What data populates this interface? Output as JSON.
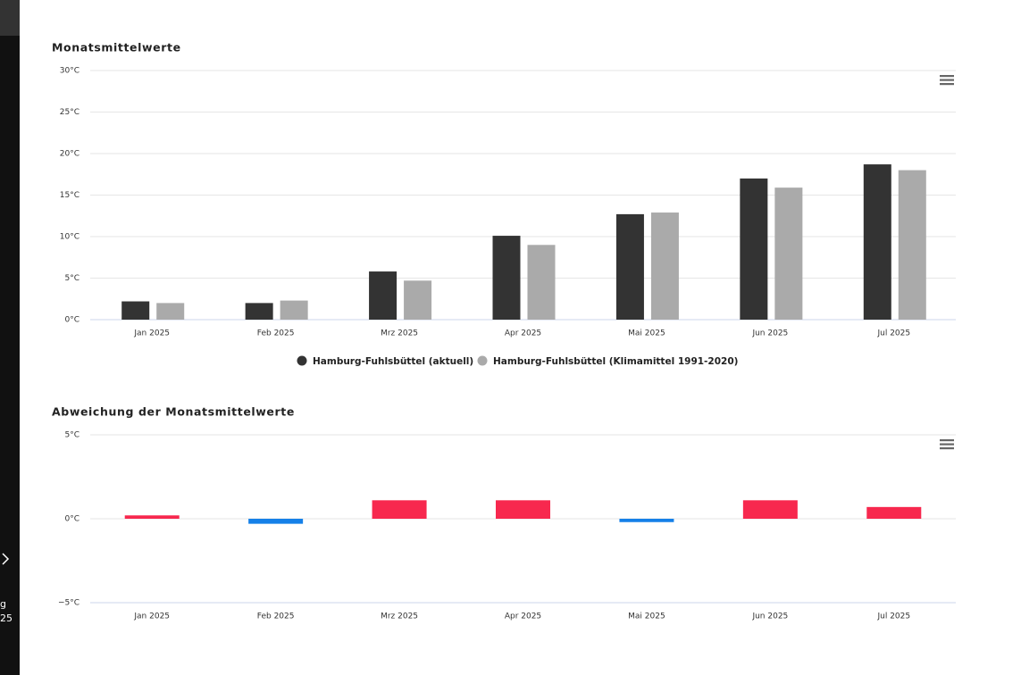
{
  "sidebar": {
    "texts": [
      "g",
      "25"
    ]
  },
  "chart_data": [
    {
      "type": "bar",
      "title": "Monatsmittelwerte",
      "categories": [
        "Jan 2025",
        "Feb 2025",
        "Mrz 2025",
        "Apr 2025",
        "Mai 2025",
        "Jun 2025",
        "Jul 2025"
      ],
      "series": [
        {
          "name": "Hamburg-Fuhlsbüttel (aktuell)",
          "color": "#333333",
          "values": [
            2.2,
            2.0,
            5.8,
            10.1,
            12.7,
            17.0,
            18.7
          ]
        },
        {
          "name": "Hamburg-Fuhlsbüttel (Klimamittel 1991-2020)",
          "color": "#aaaaaa",
          "values": [
            2.0,
            2.3,
            4.7,
            9.0,
            12.9,
            15.9,
            18.0
          ]
        }
      ],
      "ylim": [
        0,
        30
      ],
      "yticks": [
        {
          "value": 0,
          "label": "0°C"
        },
        {
          "value": 5,
          "label": "5°C"
        },
        {
          "value": 10,
          "label": "10°C"
        },
        {
          "value": 15,
          "label": "15°C"
        },
        {
          "value": 20,
          "label": "20°C"
        },
        {
          "value": 25,
          "label": "25°C"
        },
        {
          "value": 30,
          "label": "30°C"
        }
      ],
      "grid": true,
      "legend": "bottom"
    },
    {
      "type": "diverging",
      "title": "Abweichung der Monatsmittelwerte",
      "categories": [
        "Jan 2025",
        "Feb 2025",
        "Mrz 2025",
        "Apr 2025",
        "Mai 2025",
        "Jun 2025",
        "Jul 2025"
      ],
      "values": [
        0.2,
        -0.3,
        1.1,
        1.1,
        -0.2,
        1.1,
        0.7
      ],
      "positive_color": "#f7284e",
      "negative_color": "#1580e8",
      "ylim": [
        -5,
        5
      ],
      "yticks": [
        {
          "value": -5,
          "label": "−5°C"
        },
        {
          "value": 0,
          "label": "0°C"
        },
        {
          "value": 5,
          "label": "5°C"
        }
      ],
      "grid": true
    }
  ]
}
